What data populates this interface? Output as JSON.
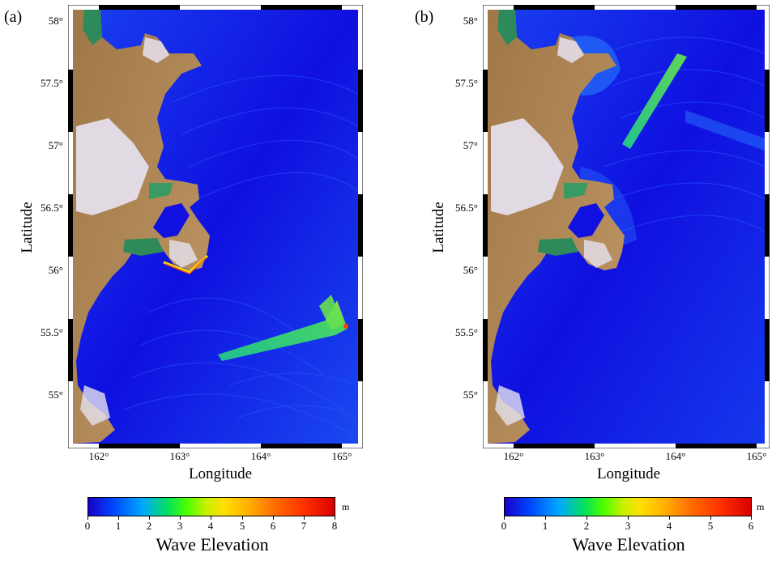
{
  "panels": [
    {
      "label": "(a)",
      "y_axis_title": "Latitude",
      "x_axis_title": "Longitude",
      "lat_ticks": [
        "58°",
        "57.5°",
        "57°",
        "56.5°",
        "56°",
        "55.5°",
        "55°"
      ],
      "lon_ticks": [
        "162°",
        "163°",
        "164°",
        "165°"
      ],
      "colorbar": {
        "unit": "m",
        "ticks": [
          "0",
          "1",
          "2",
          "3",
          "4",
          "5",
          "6",
          "7",
          "8"
        ],
        "title": "Wave Elevation"
      }
    },
    {
      "label": "(b)",
      "y_axis_title": "Latitude",
      "x_axis_title": "Longitude",
      "lat_ticks": [
        "58°",
        "57.5°",
        "57°",
        "56.5°",
        "56°",
        "55.5°",
        "55°"
      ],
      "lon_ticks": [
        "162°",
        "163°",
        "164°",
        "165°"
      ],
      "colorbar": {
        "unit": "m",
        "ticks": [
          "0",
          "1",
          "2",
          "3",
          "4",
          "5",
          "6"
        ],
        "title": "Wave Elevation"
      }
    }
  ],
  "colors": {
    "ocean": "#1010e0",
    "ocean_light": "#1a50f0",
    "land": "#b08a55",
    "snow": "#e8e6f2",
    "vegetation": "#2e8a5a",
    "wave_high": "#33dd66",
    "wave_peak": "#ccee33"
  }
}
